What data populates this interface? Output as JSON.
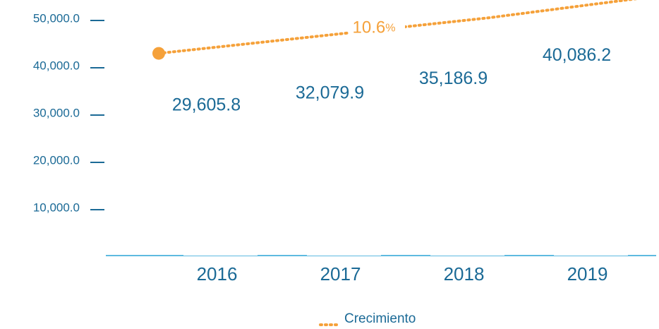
{
  "chart_data": {
    "type": "bar",
    "categories": [
      "2016",
      "2017",
      "2018",
      "2019"
    ],
    "values": [
      29605.8,
      32079.9,
      35186.9,
      40086.2
    ],
    "value_labels": [
      "29,605.8",
      "32,079.9",
      "35,186.9",
      "40,086.2"
    ],
    "color": "#ffffff",
    "ylim": [
      0,
      60000
    ],
    "yticks": [
      {
        "value": 10000,
        "label": "10,000.0"
      },
      {
        "value": 20000,
        "label": "20,000.0"
      },
      {
        "value": 30000,
        "label": "30,000.0"
      },
      {
        "value": 40000,
        "label": "40,000.0"
      },
      {
        "value": 50000,
        "label": "50,000.0"
      }
    ],
    "grid": false,
    "y2lim": [
      4,
      12
    ],
    "series": [
      {
        "name": "Crecimiento",
        "color": "#f5a13a",
        "axis": "y2",
        "values": [
          9.7,
          10.2,
          10.7,
          11.3
        ]
      }
    ],
    "annotation": {
      "text": "10.6",
      "unit": "%"
    },
    "legend": "bottom"
  }
}
